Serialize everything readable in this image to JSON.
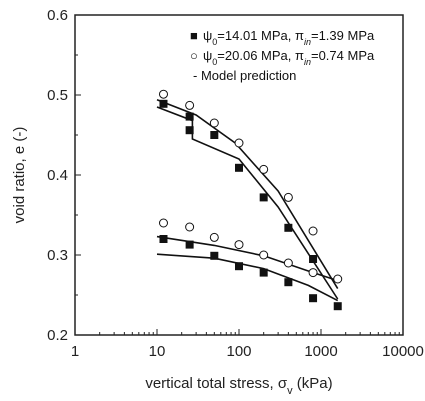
{
  "chart_data": {
    "type": "scatter",
    "xscale": "log",
    "xlim": [
      1,
      10000
    ],
    "ylim": [
      0.2,
      0.6
    ],
    "xticks": [
      1,
      10,
      100,
      1000,
      10000
    ],
    "xtick_labels": [
      "1",
      "10",
      "100",
      "1000",
      "10000"
    ],
    "yticks": [
      0.2,
      0.3,
      0.4,
      0.5,
      0.6
    ],
    "ytick_labels": [
      "0.2",
      "0.3",
      "0.4",
      "0.5",
      "0.6"
    ],
    "xlabel": "vertical total stress, σ",
    "xlabel_sub": "v",
    "xlabel_unit": " (kPa)",
    "ylabel": "void ratio, e (-)",
    "legend_position": "top-right",
    "series": [
      {
        "legend_symbol": "■",
        "legend_parts": [
          "ψ",
          "0",
          "=14.01 MPa, π",
          "in",
          "=1.39 MPa"
        ],
        "marker": "filled-square",
        "points": [
          {
            "x": 12,
            "y": 0.489
          },
          {
            "x": 25,
            "y": 0.473
          },
          {
            "x": 25,
            "y": 0.456
          },
          {
            "x": 50,
            "y": 0.45
          },
          {
            "x": 100,
            "y": 0.409
          },
          {
            "x": 200,
            "y": 0.372
          },
          {
            "x": 400,
            "y": 0.334
          },
          {
            "x": 800,
            "y": 0.295
          },
          {
            "x": 12,
            "y": 0.32
          },
          {
            "x": 25,
            "y": 0.313
          },
          {
            "x": 50,
            "y": 0.299
          },
          {
            "x": 100,
            "y": 0.286
          },
          {
            "x": 200,
            "y": 0.278
          },
          {
            "x": 400,
            "y": 0.266
          },
          {
            "x": 800,
            "y": 0.246
          },
          {
            "x": 1600,
            "y": 0.236
          }
        ]
      },
      {
        "legend_symbol": "○",
        "legend_parts": [
          "ψ",
          "0",
          "=20.06 MPa, π",
          "in",
          "=0.74 MPa"
        ],
        "marker": "open-circle",
        "points": [
          {
            "x": 12,
            "y": 0.501
          },
          {
            "x": 25,
            "y": 0.487
          },
          {
            "x": 50,
            "y": 0.465
          },
          {
            "x": 100,
            "y": 0.44
          },
          {
            "x": 200,
            "y": 0.407
          },
          {
            "x": 400,
            "y": 0.372
          },
          {
            "x": 800,
            "y": 0.33
          },
          {
            "x": 1600,
            "y": 0.27
          },
          {
            "x": 12,
            "y": 0.34
          },
          {
            "x": 25,
            "y": 0.335
          },
          {
            "x": 50,
            "y": 0.322
          },
          {
            "x": 100,
            "y": 0.313
          },
          {
            "x": 200,
            "y": 0.3
          },
          {
            "x": 400,
            "y": 0.29
          },
          {
            "x": 800,
            "y": 0.278
          }
        ]
      }
    ],
    "model_legend": "- Model prediction",
    "model_lines": [
      [
        {
          "x": 10,
          "y": 0.485
        },
        {
          "x": 27,
          "y": 0.468
        },
        {
          "x": 27,
          "y": 0.445
        },
        {
          "x": 100,
          "y": 0.42
        },
        {
          "x": 300,
          "y": 0.36
        },
        {
          "x": 1600,
          "y": 0.245
        }
      ],
      [
        {
          "x": 10,
          "y": 0.494
        },
        {
          "x": 30,
          "y": 0.475
        },
        {
          "x": 90,
          "y": 0.44
        },
        {
          "x": 300,
          "y": 0.38
        },
        {
          "x": 1600,
          "y": 0.258
        }
      ],
      [
        {
          "x": 10,
          "y": 0.323
        },
        {
          "x": 50,
          "y": 0.312
        },
        {
          "x": 200,
          "y": 0.299
        },
        {
          "x": 700,
          "y": 0.28
        },
        {
          "x": 1600,
          "y": 0.268
        }
      ],
      [
        {
          "x": 10,
          "y": 0.301
        },
        {
          "x": 50,
          "y": 0.296
        },
        {
          "x": 200,
          "y": 0.283
        },
        {
          "x": 700,
          "y": 0.262
        },
        {
          "x": 1600,
          "y": 0.243
        }
      ]
    ]
  }
}
